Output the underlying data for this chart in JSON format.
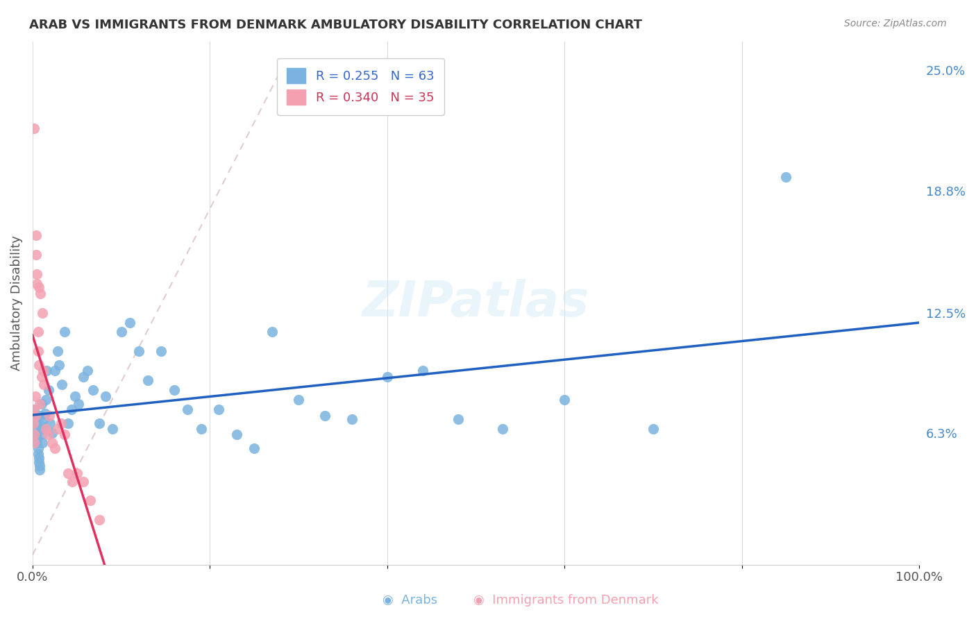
{
  "title": "ARAB VS IMMIGRANTS FROM DENMARK AMBULATORY DISABILITY CORRELATION CHART",
  "source": "Source: ZipAtlas.com",
  "xlabel": "",
  "ylabel": "Ambulatory Disability",
  "xlim": [
    0,
    1.0
  ],
  "ylim": [
    -0.005,
    0.265
  ],
  "xticks": [
    0.0,
    0.2,
    0.4,
    0.6,
    0.8,
    1.0
  ],
  "xticklabels": [
    "0.0%",
    "",
    "",
    "",
    "",
    "100.0%"
  ],
  "yticks_right": [
    0.063,
    0.125,
    0.188,
    0.25
  ],
  "yticklabels_right": [
    "6.3%",
    "12.5%",
    "18.8%",
    "25.0%"
  ],
  "legend_labels": [
    "Arabs",
    "Immigrants from Denmark"
  ],
  "R_arab": 0.255,
  "N_arab": 63,
  "R_denmark": 0.34,
  "N_denmark": 35,
  "arab_color": "#7ab3e0",
  "denmark_color": "#f4a0b0",
  "arab_line_color": "#2060c0",
  "denmark_line_color": "#e03060",
  "watermark": "ZIPatlas",
  "arab_x": [
    0.002,
    0.003,
    0.003,
    0.004,
    0.004,
    0.005,
    0.005,
    0.006,
    0.006,
    0.007,
    0.007,
    0.008,
    0.008,
    0.009,
    0.009,
    0.01,
    0.01,
    0.011,
    0.012,
    0.013,
    0.014,
    0.015,
    0.016,
    0.018,
    0.02,
    0.022,
    0.025,
    0.028,
    0.03,
    0.033,
    0.036,
    0.04,
    0.044,
    0.048,
    0.052,
    0.057,
    0.062,
    0.068,
    0.075,
    0.082,
    0.09,
    0.1,
    0.11,
    0.12,
    0.13,
    0.145,
    0.16,
    0.175,
    0.19,
    0.21,
    0.23,
    0.25,
    0.27,
    0.3,
    0.33,
    0.36,
    0.4,
    0.44,
    0.48,
    0.53,
    0.6,
    0.7,
    0.85
  ],
  "arab_y": [
    0.075,
    0.072,
    0.068,
    0.065,
    0.062,
    0.06,
    0.058,
    0.055,
    0.052,
    0.05,
    0.048,
    0.046,
    0.044,
    0.067,
    0.072,
    0.078,
    0.062,
    0.058,
    0.065,
    0.07,
    0.073,
    0.08,
    0.095,
    0.085,
    0.068,
    0.063,
    0.095,
    0.105,
    0.098,
    0.088,
    0.115,
    0.068,
    0.075,
    0.082,
    0.078,
    0.092,
    0.095,
    0.085,
    0.068,
    0.082,
    0.065,
    0.115,
    0.12,
    0.105,
    0.09,
    0.105,
    0.085,
    0.075,
    0.065,
    0.075,
    0.062,
    0.055,
    0.115,
    0.08,
    0.072,
    0.07,
    0.092,
    0.095,
    0.07,
    0.065,
    0.08,
    0.065,
    0.195
  ],
  "denmark_x": [
    0.001,
    0.001,
    0.002,
    0.002,
    0.002,
    0.003,
    0.003,
    0.004,
    0.004,
    0.005,
    0.005,
    0.006,
    0.006,
    0.007,
    0.007,
    0.008,
    0.009,
    0.01,
    0.011,
    0.012,
    0.013,
    0.015,
    0.017,
    0.019,
    0.022,
    0.025,
    0.028,
    0.032,
    0.036,
    0.04,
    0.045,
    0.05,
    0.057,
    0.065,
    0.075
  ],
  "denmark_y": [
    0.075,
    0.068,
    0.062,
    0.058,
    0.22,
    0.072,
    0.082,
    0.165,
    0.155,
    0.145,
    0.14,
    0.115,
    0.105,
    0.098,
    0.138,
    0.078,
    0.135,
    0.092,
    0.125,
    0.095,
    0.088,
    0.065,
    0.062,
    0.072,
    0.058,
    0.055,
    0.065,
    0.068,
    0.062,
    0.042,
    0.038,
    0.042,
    0.038,
    0.028,
    0.018
  ]
}
